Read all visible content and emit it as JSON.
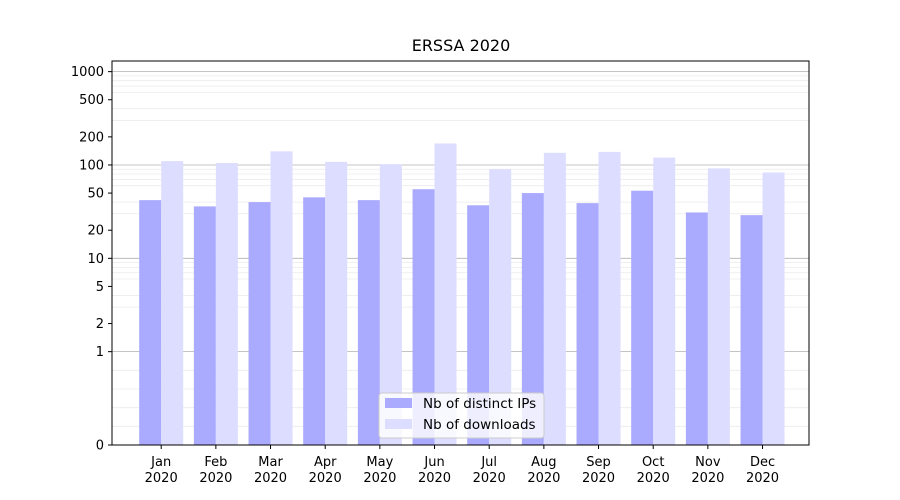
{
  "chart_data": {
    "type": "bar",
    "title": "ERSSA 2020",
    "xlabel": "",
    "ylabel": "",
    "yscale": "symlog",
    "ylim": [
      0,
      1300
    ],
    "yticks": [
      0,
      1,
      2,
      5,
      10,
      20,
      50,
      100,
      200,
      500,
      1000
    ],
    "grid": true,
    "legend_position": "bottom-center",
    "categories": [
      [
        "Jan",
        "2020"
      ],
      [
        "Feb",
        "2020"
      ],
      [
        "Mar",
        "2020"
      ],
      [
        "Apr",
        "2020"
      ],
      [
        "May",
        "2020"
      ],
      [
        "Jun",
        "2020"
      ],
      [
        "Jul",
        "2020"
      ],
      [
        "Aug",
        "2020"
      ],
      [
        "Sep",
        "2020"
      ],
      [
        "Oct",
        "2020"
      ],
      [
        "Nov",
        "2020"
      ],
      [
        "Dec",
        "2020"
      ]
    ],
    "series": [
      {
        "name": "Nb of distinct IPs",
        "color": "#aaaaff",
        "values": [
          42,
          36,
          40,
          45,
          42,
          55,
          37,
          50,
          39,
          53,
          31,
          29
        ]
      },
      {
        "name": "Nb of downloads",
        "color": "#ddddff",
        "values": [
          110,
          105,
          140,
          108,
          102,
          170,
          90,
          135,
          138,
          120,
          92,
          83
        ]
      }
    ]
  }
}
